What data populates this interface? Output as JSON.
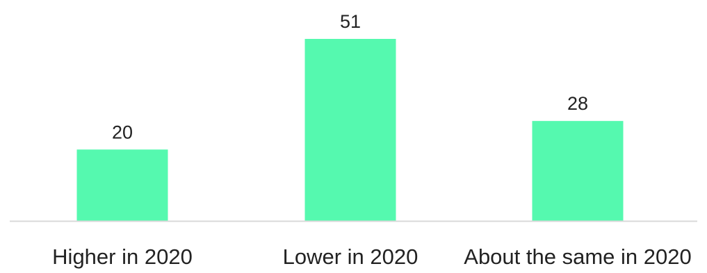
{
  "chart_data": {
    "type": "bar",
    "categories": [
      "Higher in 2020",
      "Lower in 2020",
      "About the same in 2020"
    ],
    "values": [
      20,
      51,
      28
    ],
    "title": "",
    "xlabel": "",
    "ylabel": "",
    "ylim": [
      0,
      51
    ],
    "grid": false,
    "legend": "none",
    "bar_color": "#55f9af",
    "axis_color": "#d9d9d9",
    "text_color": "#222222"
  }
}
